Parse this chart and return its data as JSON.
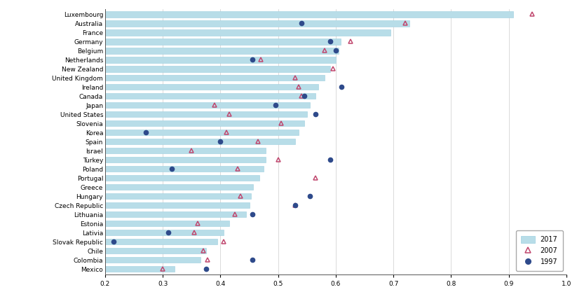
{
  "countries": [
    "Luxembourg",
    "Australia",
    "France",
    "Germany",
    "Belgium",
    "Netherlands",
    "New Zealand",
    "United Kingdom",
    "Ireland",
    "Canada",
    "Japan",
    "United States",
    "Slovenia",
    "Korea",
    "Spain",
    "Israel",
    "Turkey",
    "Poland",
    "Portugal",
    "Greece",
    "Hungary",
    "Czech Republic",
    "Lithuania",
    "Estonia",
    "Lativia",
    "Slovak Republic",
    "Chile",
    "Colombia",
    "Mexico"
  ],
  "val_2017": [
    0.908,
    0.728,
    0.695,
    0.608,
    0.605,
    0.6,
    0.59,
    0.58,
    0.57,
    0.565,
    0.555,
    0.55,
    0.545,
    0.535,
    0.53,
    0.478,
    0.478,
    0.475,
    0.468,
    0.457,
    0.453,
    0.45,
    0.445,
    0.415,
    0.405,
    0.395,
    0.375,
    0.365,
    0.32
  ],
  "val_2007": [
    0.94,
    0.72,
    null,
    0.625,
    0.58,
    0.47,
    0.595,
    0.53,
    0.535,
    0.54,
    0.39,
    0.415,
    0.505,
    0.41,
    0.465,
    0.35,
    0.5,
    0.43,
    0.565,
    null,
    0.435,
    0.53,
    0.425,
    0.36,
    0.355,
    0.405,
    0.37,
    0.378,
    0.3
  ],
  "val_1997": [
    null,
    0.54,
    null,
    0.59,
    0.6,
    0.455,
    null,
    null,
    0.61,
    0.545,
    0.495,
    0.565,
    null,
    0.27,
    0.4,
    null,
    0.59,
    0.315,
    null,
    null,
    0.555,
    0.53,
    0.455,
    null,
    0.31,
    0.215,
    null,
    0.455,
    0.375
  ],
  "bar_color": "#B8DDE8",
  "bar_edgecolor": "#9DCFDF",
  "marker_2007_color": "#C0476E",
  "marker_1997_color": "#2E4A8B",
  "xlim": [
    0.2,
    1.0
  ],
  "tick_fontsize": 6.5,
  "bar_height": 0.65
}
